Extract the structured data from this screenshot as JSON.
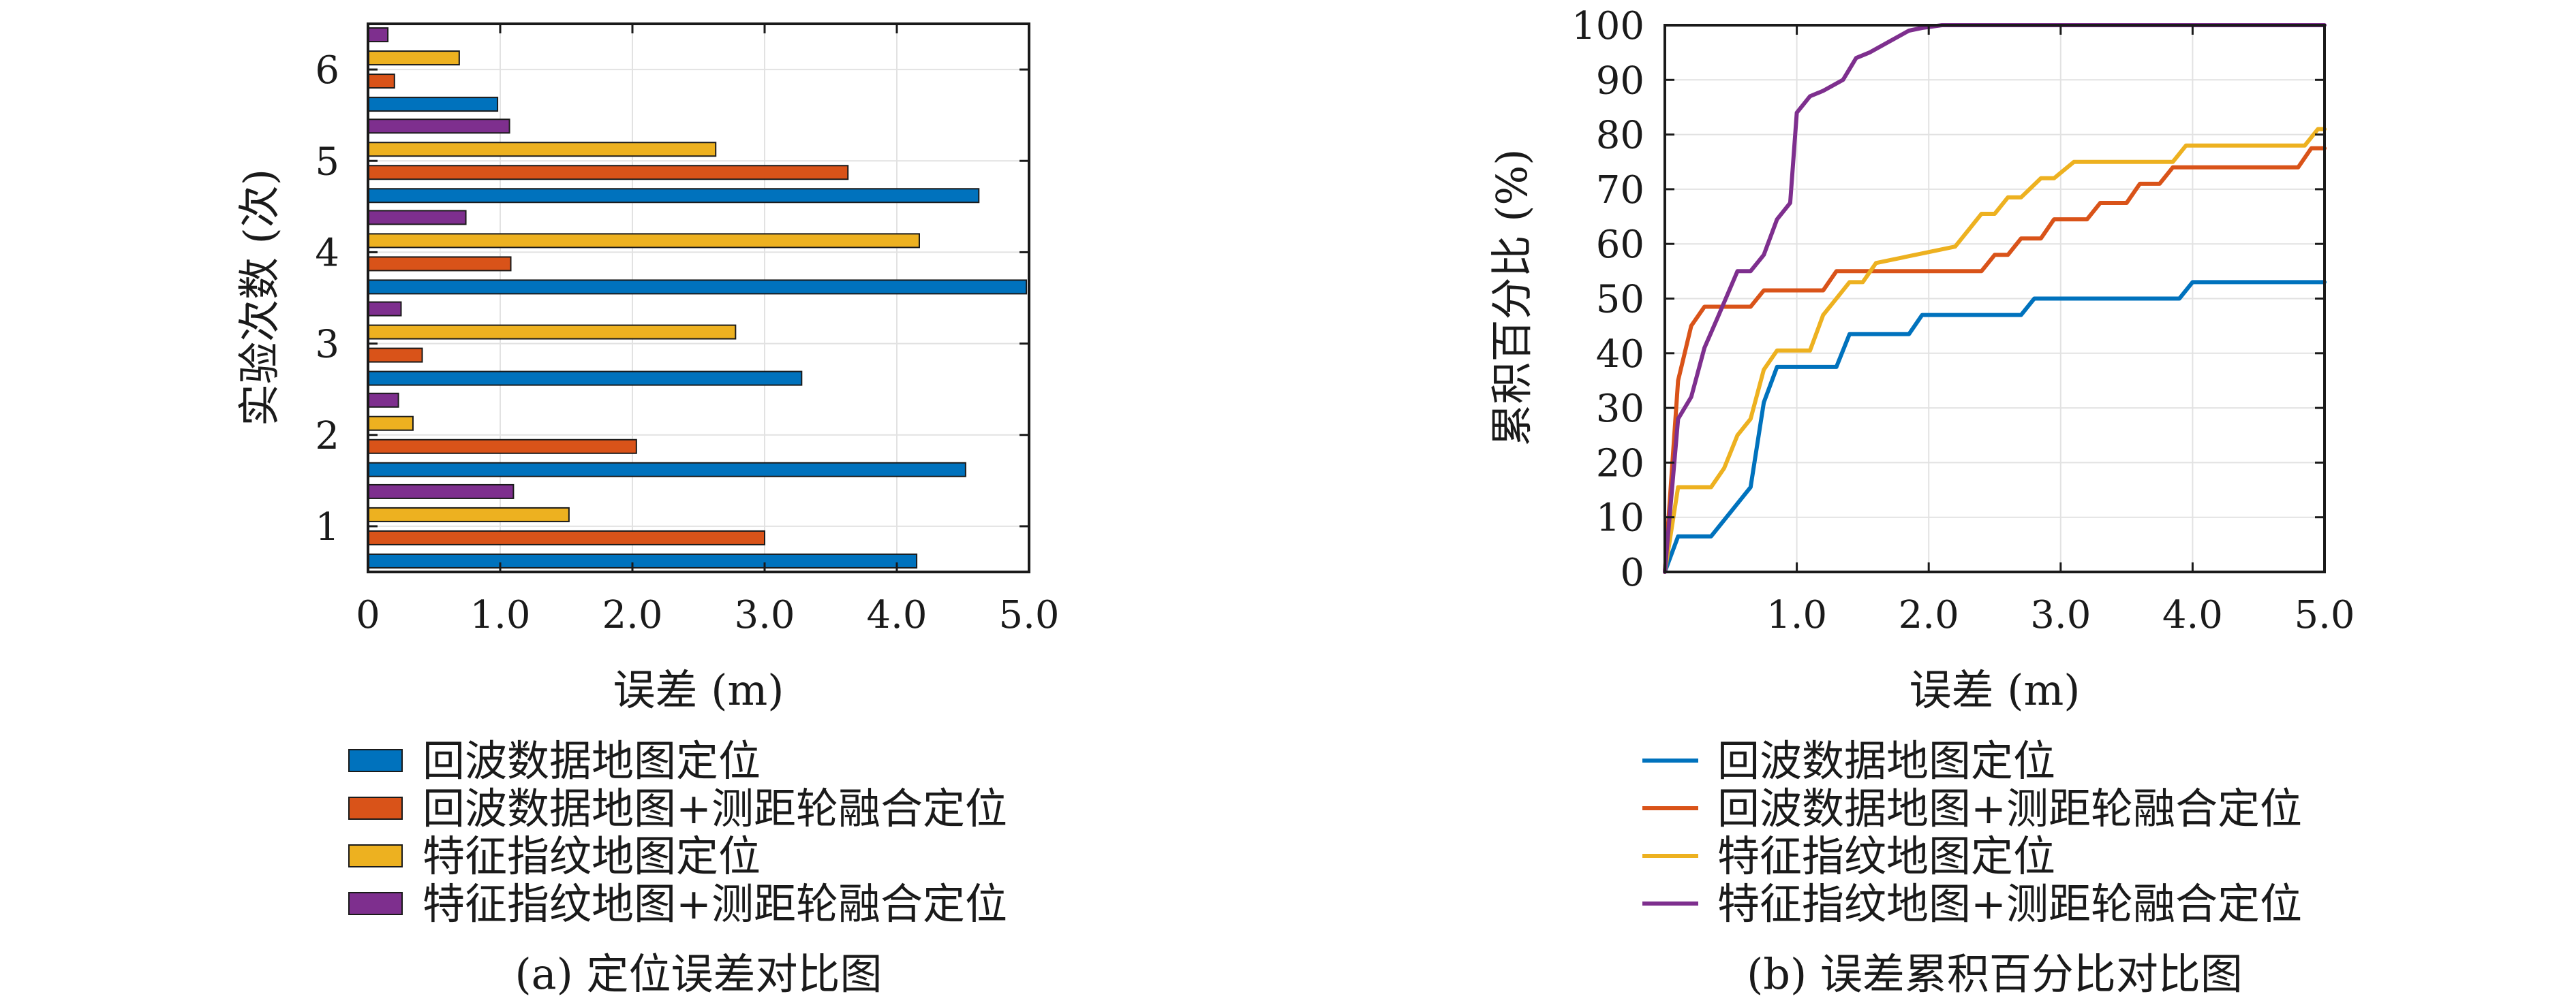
{
  "chart_data": [
    {
      "type": "bar",
      "orientation": "horizontal",
      "title": "(a) 定位误差对比图",
      "xlabel": "误差 (m)",
      "ylabel": "实验次数 (次)",
      "categories": [
        "1",
        "2",
        "3",
        "4",
        "5",
        "6"
      ],
      "xlim": [
        0,
        5
      ],
      "xticks": [
        "0",
        "1.0",
        "2.0",
        "3.0",
        "4.0",
        "5.0"
      ],
      "grid": true,
      "legend": "below",
      "series": [
        {
          "name": "回波数据地图定位",
          "color": "#0072BD",
          "values": [
            4.15,
            4.52,
            3.28,
            4.98,
            4.62,
            0.98
          ]
        },
        {
          "name": "回波数据地图+测距轮融合定位",
          "color": "#D95319",
          "values": [
            3.0,
            2.03,
            0.41,
            1.08,
            3.63,
            0.2
          ]
        },
        {
          "name": "特征指纹地图定位",
          "color": "#EDB120",
          "values": [
            1.52,
            0.34,
            2.78,
            4.17,
            2.63,
            0.69
          ]
        },
        {
          "name": "特征指纹地图+测距轮融合定位",
          "color": "#7E2F8E",
          "values": [
            1.1,
            0.23,
            0.25,
            0.74,
            1.07,
            0.15
          ]
        }
      ]
    },
    {
      "type": "line",
      "title": "(b) 误差累积百分比对比图",
      "xlabel": "误差 (m)",
      "ylabel": "累积百分比 (%)",
      "xlim": [
        0,
        5
      ],
      "ylim": [
        0,
        100
      ],
      "xticks": [
        "1.0",
        "2.0",
        "3.0",
        "4.0",
        "5.0"
      ],
      "yticks": [
        "0",
        "10",
        "20",
        "30",
        "40",
        "50",
        "60",
        "70",
        "80",
        "90",
        "100"
      ],
      "grid": true,
      "legend": "below",
      "series": [
        {
          "name": "回波数据地图定位",
          "color": "#0072BD",
          "x": [
            0,
            0.1,
            0.35,
            0.65,
            0.75,
            0.85,
            1.3,
            1.4,
            1.85,
            1.95,
            2.7,
            2.8,
            3.9,
            4.0,
            5.0
          ],
          "y": [
            0,
            6.5,
            6.5,
            15.5,
            31,
            37.5,
            37.5,
            43.5,
            43.5,
            47,
            47,
            50,
            50,
            53,
            53
          ]
        },
        {
          "name": "回波数据地图+测距轮融合定位",
          "color": "#D95319",
          "x": [
            0,
            0.1,
            0.2,
            0.3,
            0.65,
            0.75,
            1.2,
            1.3,
            2.4,
            2.5,
            2.6,
            2.7,
            2.85,
            2.95,
            3.2,
            3.3,
            3.5,
            3.6,
            3.75,
            3.85,
            4.2,
            4.3,
            4.8,
            4.9,
            5.0
          ],
          "y": [
            0,
            35,
            45,
            48.5,
            48.5,
            51.5,
            51.5,
            55,
            55,
            58,
            58,
            61,
            61,
            64.5,
            64.5,
            67.5,
            67.5,
            71,
            71,
            74,
            74,
            74,
            74,
            77.5,
            77.5
          ]
        },
        {
          "name": "特征指纹地图定位",
          "color": "#EDB120",
          "x": [
            0,
            0.1,
            0.35,
            0.45,
            0.55,
            0.65,
            0.75,
            0.85,
            1.1,
            1.2,
            1.3,
            1.4,
            1.5,
            1.6,
            2.2,
            2.3,
            2.4,
            2.5,
            2.6,
            2.7,
            2.85,
            2.95,
            3.1,
            3.2,
            3.75,
            3.85,
            3.95,
            4.85,
            4.95,
            5.0
          ],
          "y": [
            0,
            15.5,
            15.5,
            19,
            25,
            28,
            37,
            40.5,
            40.5,
            47,
            50,
            53,
            53,
            56.5,
            59.5,
            62.5,
            65.5,
            65.5,
            68.5,
            68.5,
            72,
            72,
            75,
            75,
            75,
            75,
            78,
            78,
            81,
            81
          ]
        },
        {
          "name": "特征指纹地图+测距轮融合定位",
          "color": "#7E2F8E",
          "x": [
            0,
            0.1,
            0.2,
            0.3,
            0.4,
            0.55,
            0.65,
            0.75,
            0.85,
            0.95,
            1.0,
            1.1,
            1.2,
            1.35,
            1.45,
            1.55,
            1.7,
            1.85,
            1.95,
            2.1,
            2.3,
            5.0
          ],
          "y": [
            0,
            28,
            32,
            41,
            46.5,
            55,
            55,
            58,
            64.5,
            67.5,
            84,
            87,
            88,
            90,
            94,
            95,
            97,
            99,
            99.5,
            100,
            100,
            100
          ]
        }
      ]
    }
  ]
}
